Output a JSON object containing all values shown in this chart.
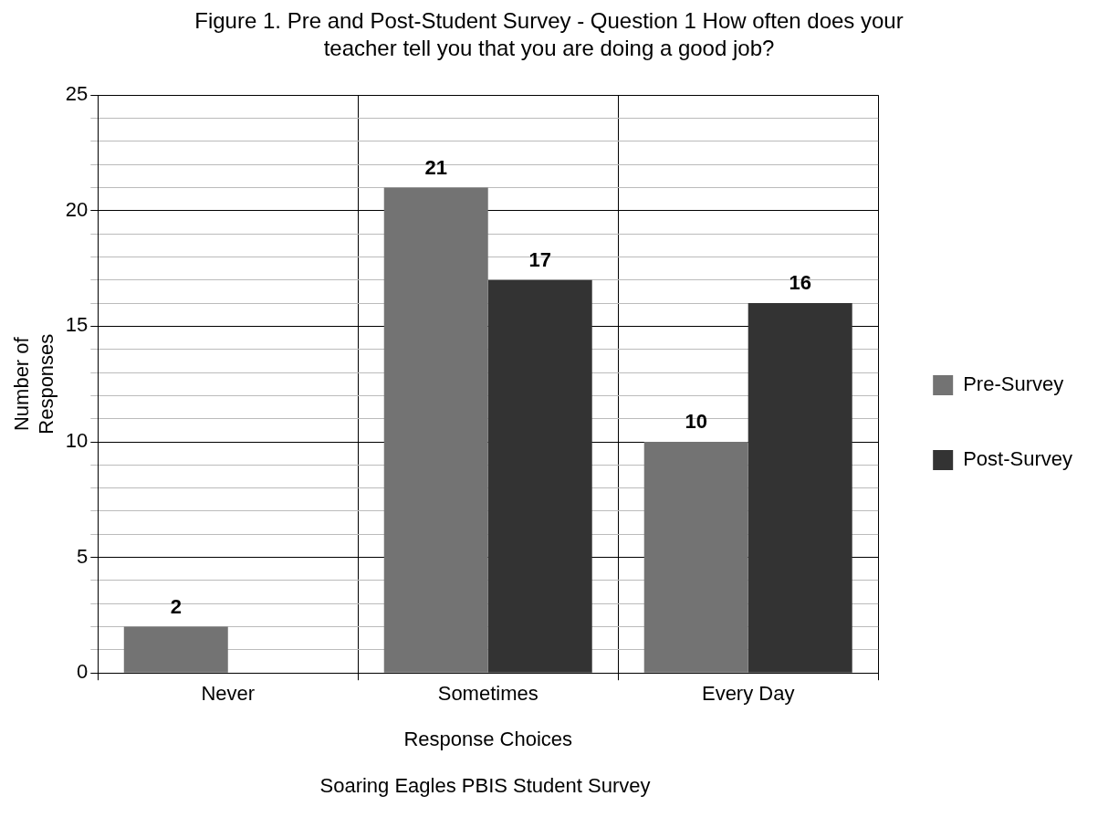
{
  "chart_data": {
    "type": "bar",
    "title": "Figure 1. Pre and Post-Student Survey - Question 1 How often does your teacher tell you  that you are doing a good job?",
    "xlabel": "Response Choices",
    "ylabel": "Number of Responses",
    "categories": [
      "Never",
      "Sometimes",
      "Every Day"
    ],
    "series": [
      {
        "name": "Pre-Survey",
        "color": "#737373",
        "values": [
          2,
          21,
          10
        ],
        "value_labels": [
          "2",
          "21",
          "10"
        ]
      },
      {
        "name": "Post-Survey",
        "color": "#333333",
        "values": [
          null,
          17,
          16
        ],
        "value_labels": [
          null,
          "17",
          "16"
        ]
      }
    ],
    "ylim": [
      0,
      25
    ],
    "yticks": [
      0,
      {
        "value": 1,
        "label": null
      },
      {
        "value": 2,
        "label": null
      },
      {
        "value": 3,
        "label": null
      },
      {
        "value": 4,
        "label": null
      },
      5,
      {
        "value": 6,
        "label": null
      },
      {
        "value": 7,
        "label": null
      },
      {
        "value": 8,
        "label": null
      },
      {
        "value": 9,
        "label": null
      },
      10,
      {
        "value": 11,
        "label": null
      },
      {
        "value": 12,
        "label": null
      },
      {
        "value": 13,
        "label": null
      },
      {
        "value": 14,
        "label": null
      },
      15,
      {
        "value": 16,
        "label": null
      },
      {
        "value": 17,
        "label": null
      },
      {
        "value": 18,
        "label": null
      },
      {
        "value": 19,
        "label": null
      },
      20,
      {
        "value": 21,
        "label": null
      },
      {
        "value": 22,
        "label": null
      },
      {
        "value": 23,
        "label": null
      },
      {
        "value": 24,
        "label": null
      },
      25
    ],
    "grid": true,
    "legend": "right",
    "annotations": [
      "Soaring Eagles PBIS Student Survey"
    ]
  }
}
